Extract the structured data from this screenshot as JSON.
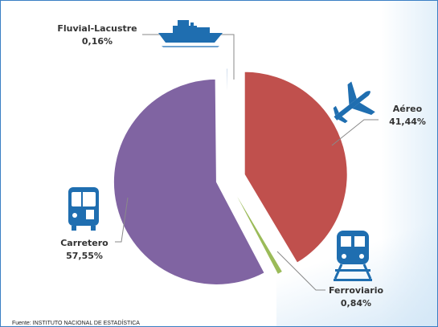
{
  "chart_data": {
    "type": "pie",
    "title": "",
    "slices": [
      {
        "category": "Aéreo",
        "value": 41.44,
        "label": "41,44%",
        "color": "#c0504d"
      },
      {
        "category": "Ferroviario",
        "value": 0.84,
        "label": "0,84%",
        "color": "#9bbb59"
      },
      {
        "category": "Carretero",
        "value": 57.55,
        "label": "57,55%",
        "color": "#8064a2"
      },
      {
        "category": "Fluvial-Lacustre",
        "value": 0.16,
        "label": "0,16%",
        "color": "#4f81bd"
      }
    ]
  },
  "icons": {
    "aereo": "airplane-icon",
    "fluvial": "ship-icon",
    "carretero": "bus-icon",
    "ferroviario": "train-icon"
  },
  "source_text": "Fuente: INSTITUTO NACIONAL DE ESTADÍSTICA"
}
